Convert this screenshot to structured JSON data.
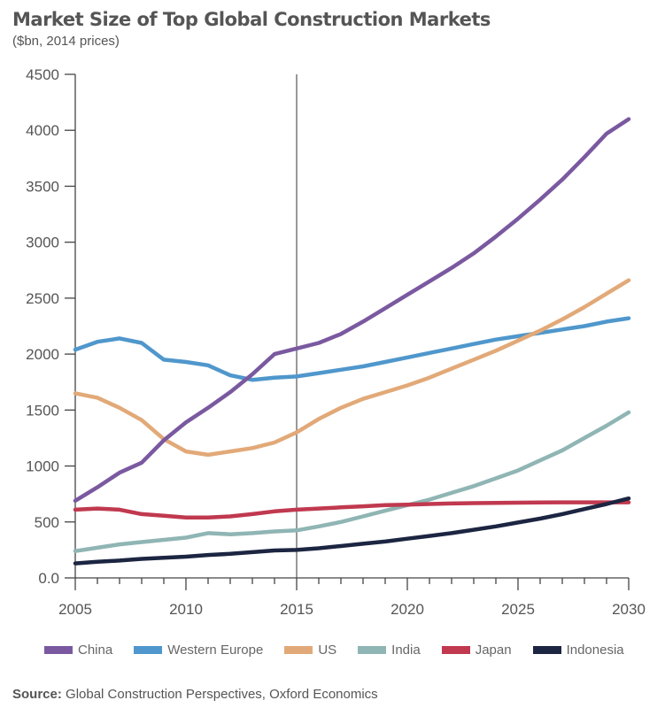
{
  "chart_data": {
    "type": "line",
    "title": "Market Size of Top Global Construction Markets",
    "subtitle": "($bn, 2014 prices)",
    "xlabel": "",
    "ylabel": "",
    "xlim": [
      2005,
      2030
    ],
    "ylim": [
      0,
      4500
    ],
    "x_ticks": [
      "2005",
      "2010",
      "2015",
      "2020",
      "2025",
      "2030"
    ],
    "y_ticks": [
      "0.0",
      "500",
      "1000",
      "1500",
      "2000",
      "2500",
      "3000",
      "3500",
      "4000",
      "4500"
    ],
    "reference_line_x": 2015,
    "legend_position": "bottom",
    "x": [
      2005,
      2006,
      2007,
      2008,
      2009,
      2010,
      2011,
      2012,
      2013,
      2014,
      2015,
      2016,
      2017,
      2018,
      2019,
      2020,
      2021,
      2022,
      2023,
      2024,
      2025,
      2026,
      2027,
      2028,
      2029,
      2030
    ],
    "series": [
      {
        "name": "China",
        "color": "#7a59a0",
        "values": [
          690,
          810,
          940,
          1030,
          1230,
          1390,
          1520,
          1660,
          1820,
          2000,
          2050,
          2100,
          2180,
          2290,
          2410,
          2530,
          2650,
          2770,
          2900,
          3050,
          3210,
          3380,
          3560,
          3760,
          3970,
          4100
        ]
      },
      {
        "name": "Western Europe",
        "color": "#4f97cc",
        "values": [
          2040,
          2110,
          2140,
          2100,
          1950,
          1930,
          1900,
          1810,
          1770,
          1790,
          1800,
          1830,
          1860,
          1890,
          1930,
          1970,
          2010,
          2050,
          2090,
          2130,
          2160,
          2190,
          2220,
          2250,
          2290,
          2320
        ]
      },
      {
        "name": "US",
        "color": "#e2a978",
        "values": [
          1650,
          1610,
          1520,
          1410,
          1240,
          1130,
          1100,
          1130,
          1160,
          1210,
          1300,
          1420,
          1520,
          1600,
          1660,
          1720,
          1790,
          1870,
          1950,
          2030,
          2120,
          2210,
          2310,
          2420,
          2540,
          2660
        ]
      },
      {
        "name": "India",
        "color": "#8fb5b4",
        "values": [
          240,
          270,
          300,
          320,
          340,
          360,
          400,
          390,
          400,
          415,
          425,
          460,
          500,
          550,
          600,
          650,
          700,
          760,
          820,
          890,
          960,
          1050,
          1140,
          1250,
          1360,
          1480
        ]
      },
      {
        "name": "Japan",
        "color": "#c0394f",
        "values": [
          610,
          620,
          610,
          570,
          555,
          540,
          540,
          550,
          570,
          595,
          610,
          620,
          630,
          640,
          650,
          655,
          660,
          665,
          668,
          670,
          672,
          674,
          675,
          675,
          675,
          675
        ]
      },
      {
        "name": "Indonesia",
        "color": "#1c2541",
        "values": [
          130,
          145,
          155,
          170,
          180,
          190,
          205,
          215,
          230,
          245,
          250,
          265,
          285,
          305,
          325,
          350,
          375,
          400,
          430,
          460,
          495,
          530,
          570,
          615,
          660,
          710
        ]
      }
    ]
  },
  "source": {
    "label": "Source:",
    "text": " Global Construction Perspectives, Oxford Economics"
  }
}
